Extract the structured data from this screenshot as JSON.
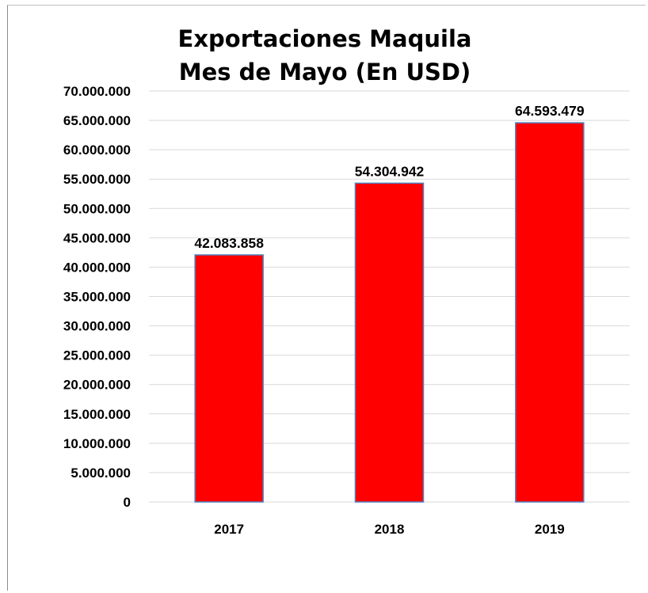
{
  "chart_data": {
    "type": "bar",
    "title_lines": [
      "Exportaciones Maquila",
      "Mes de Mayo (En USD)"
    ],
    "categories": [
      "2017",
      "2018",
      "2019"
    ],
    "values": [
      42083858,
      54304942,
      64593479
    ],
    "data_labels": [
      "42.083.858",
      "54.304.942",
      "64.593.479"
    ],
    "ylim": [
      0,
      70000000
    ],
    "yticks": [
      0,
      5000000,
      10000000,
      15000000,
      20000000,
      25000000,
      30000000,
      35000000,
      40000000,
      45000000,
      50000000,
      55000000,
      60000000,
      65000000,
      70000000
    ],
    "ytick_labels": [
      "0",
      "5.000.000",
      "10.000.000",
      "15.000.000",
      "20.000.000",
      "25.000.000",
      "30.000.000",
      "35.000.000",
      "40.000.000",
      "45.000.000",
      "50.000.000",
      "55.000.000",
      "60.000.000",
      "65.000.000",
      "70.000.000"
    ],
    "grid": true,
    "bar_color": "#ff0000",
    "bar_edge_color": "#4f81bd",
    "grid_color": "#d9d9d9"
  }
}
